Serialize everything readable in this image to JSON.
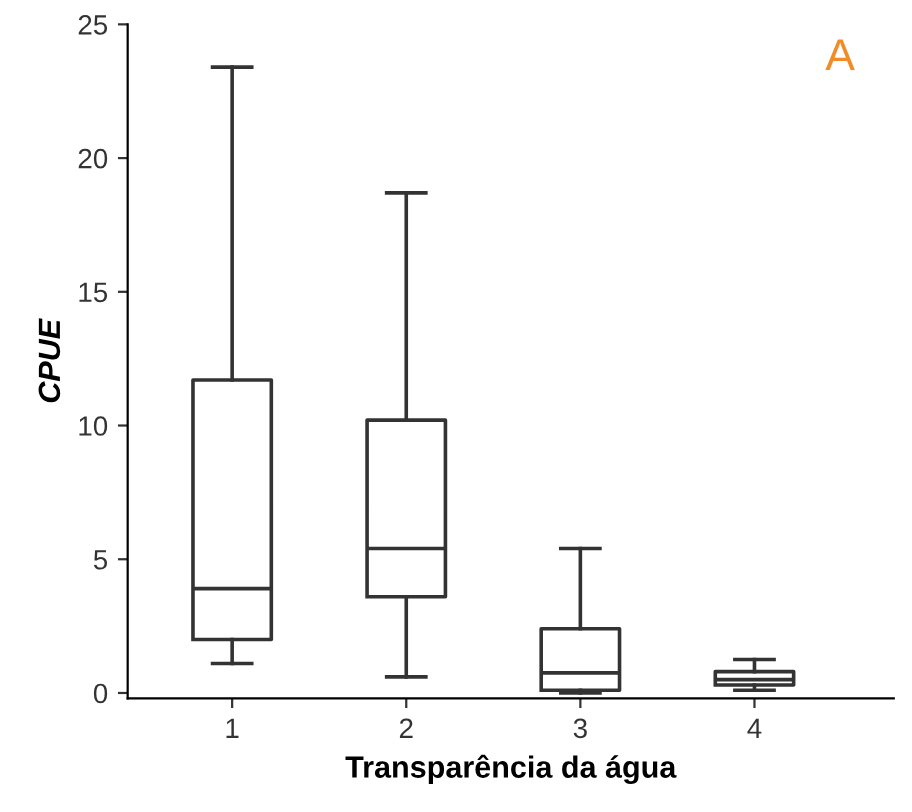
{
  "chart_data": {
    "type": "box",
    "xlabel": "Transparência da água",
    "ylabel": "CPUE",
    "categories": [
      "1",
      "2",
      "3",
      "4"
    ],
    "boxes": [
      {
        "low": 1.1,
        "q1": 2.0,
        "median": 3.9,
        "q3": 11.7,
        "high": 23.4
      },
      {
        "low": 0.6,
        "q1": 3.6,
        "median": 5.4,
        "q3": 10.2,
        "high": 18.7
      },
      {
        "low": 0.0,
        "q1": 0.1,
        "median": 0.75,
        "q3": 2.4,
        "high": 5.4
      },
      {
        "low": 0.1,
        "q1": 0.3,
        "median": 0.5,
        "q3": 0.8,
        "high": 1.25
      }
    ],
    "color": "#333333",
    "ylim": [
      -0.2,
      25
    ],
    "yticks": [
      0,
      5,
      10,
      15,
      20,
      25
    ],
    "grid": false,
    "annotations": [
      "A"
    ]
  }
}
